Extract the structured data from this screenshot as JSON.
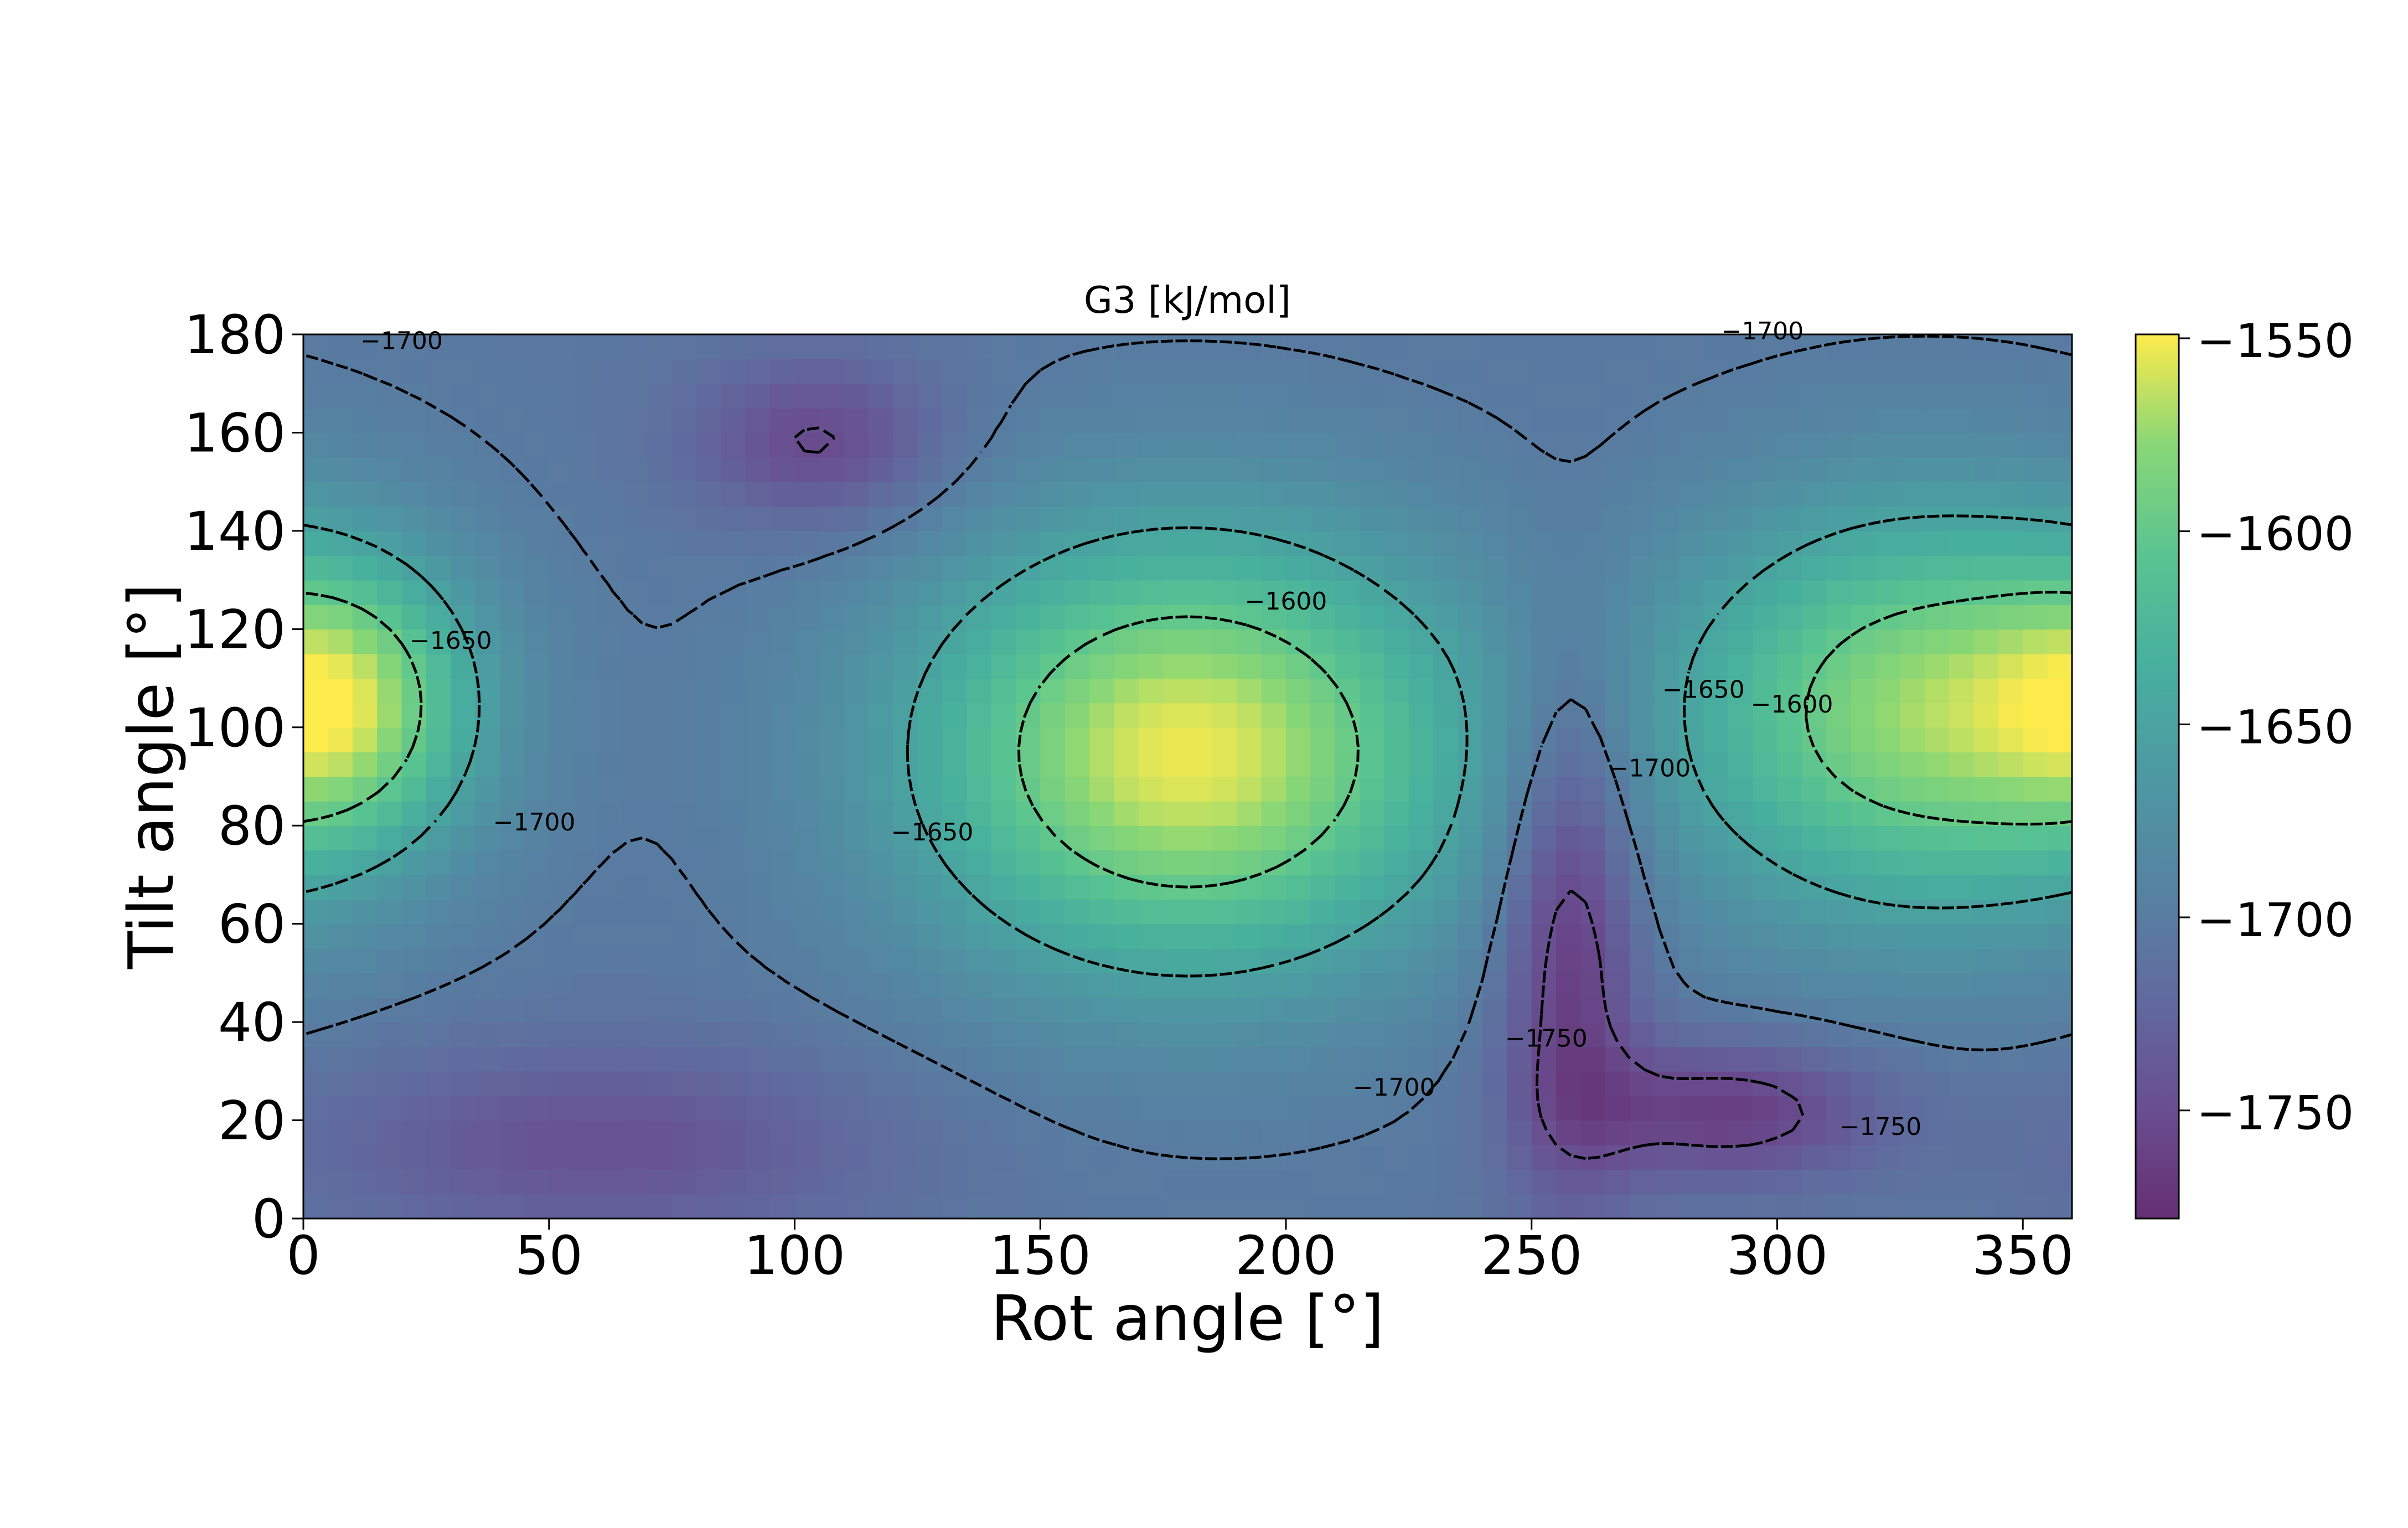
{
  "chart_data": {
    "type": "heatmap",
    "title": "G3 [kJ/mol]",
    "xlabel": "Rot angle [°]",
    "ylabel": "Tilt angle [°]",
    "xlim": [
      0,
      360
    ],
    "ylim": [
      0,
      180
    ],
    "x_ticks": [
      "0",
      "50",
      "100",
      "150",
      "200",
      "250",
      "300",
      "350"
    ],
    "x_tick_values": [
      0,
      50,
      100,
      150,
      200,
      250,
      300,
      350
    ],
    "y_ticks": [
      "0",
      "20",
      "40",
      "60",
      "80",
      "100",
      "120",
      "140",
      "160",
      "180"
    ],
    "y_tick_values": [
      0,
      20,
      40,
      60,
      80,
      100,
      120,
      140,
      160,
      180
    ],
    "colormap": "viridis",
    "colorbar": {
      "vmin": -1778,
      "vmax": -1549,
      "ticks": [
        "−1550",
        "−1600",
        "−1650",
        "−1700",
        "−1750"
      ],
      "tick_values": [
        -1550,
        -1600,
        -1650,
        -1700,
        -1750
      ]
    },
    "contour_levels": [
      -1750,
      -1700,
      -1650,
      -1600
    ],
    "contour_labels": [
      {
        "text": "−1700",
        "x": 20,
        "y": 177
      },
      {
        "text": "−1700",
        "x": 47,
        "y": 79
      },
      {
        "text": "−1650",
        "x": 30,
        "y": 116
      },
      {
        "text": "−1650",
        "x": 128,
        "y": 77
      },
      {
        "text": "−1600",
        "x": 200,
        "y": 124
      },
      {
        "text": "−1700",
        "x": 222,
        "y": 25
      },
      {
        "text": "−1750",
        "x": 253,
        "y": 35
      },
      {
        "text": "−1700",
        "x": 274,
        "y": 90
      },
      {
        "text": "−1650",
        "x": 285,
        "y": 106
      },
      {
        "text": "−1600",
        "x": 303,
        "y": 103
      },
      {
        "text": "−1700",
        "x": 297,
        "y": 179
      },
      {
        "text": "−1750",
        "x": 321,
        "y": 17
      }
    ],
    "field_features": [
      {
        "kind": "maximum",
        "rot": 180,
        "tilt": 95,
        "value": -1553
      },
      {
        "kind": "maximum",
        "rot": 330,
        "tilt": 103,
        "value": -1575
      },
      {
        "kind": "maximum",
        "rot": 10,
        "tilt": 105,
        "value": -1620
      },
      {
        "kind": "minimum",
        "rot": 258,
        "tilt": 60,
        "value": -1775
      },
      {
        "kind": "minimum",
        "rot": 105,
        "tilt": 158,
        "value": -1755
      },
      {
        "kind": "minimum",
        "rot": 290,
        "tilt": 22,
        "value": -1765
      },
      {
        "kind": "minimum",
        "rot": 60,
        "tilt": 15,
        "value": -1745
      }
    ],
    "grid": false
  }
}
